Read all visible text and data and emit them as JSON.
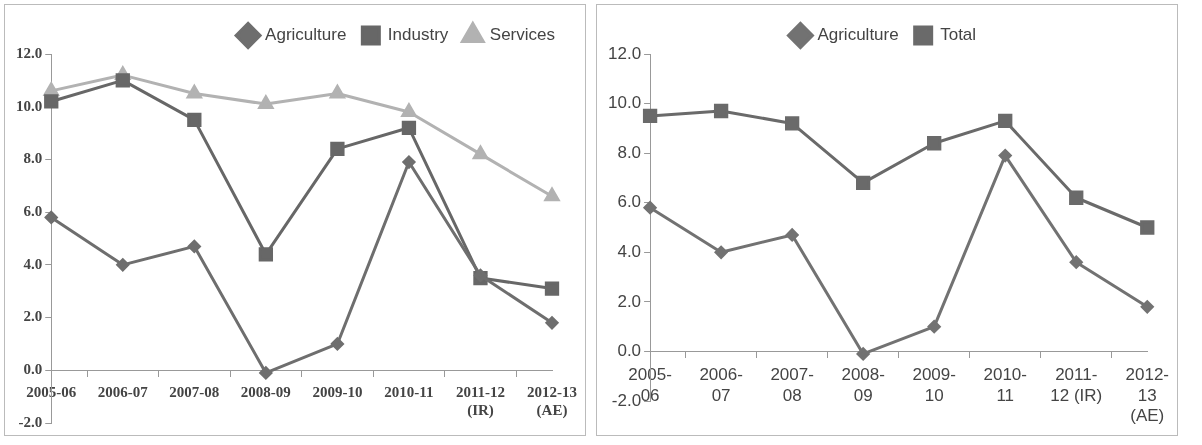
{
  "chart_data": [
    {
      "type": "line",
      "categories": [
        "2005-06",
        "2006-07",
        "2007-08",
        "2008-09",
        "2009-10",
        "2010-11",
        "2011-12 (IR)",
        "2012-13 (AE)"
      ],
      "series": [
        {
          "name": "Agriculture",
          "color": "#6e6e6e",
          "marker": "diamond",
          "values": [
            5.8,
            4.0,
            4.7,
            -0.1,
            1.0,
            7.9,
            3.6,
            1.8
          ]
        },
        {
          "name": "Industry",
          "color": "#676767",
          "marker": "square",
          "values": [
            10.2,
            11.0,
            9.5,
            4.4,
            8.4,
            9.2,
            3.5,
            3.1
          ]
        },
        {
          "name": "Services",
          "color": "#b2b2b2",
          "marker": "triangle",
          "values": [
            10.6,
            11.2,
            10.5,
            10.1,
            10.5,
            9.8,
            8.2,
            6.6
          ]
        }
      ],
      "ylim": [
        -2,
        12
      ],
      "yticks": [
        {
          "value": -2,
          "label": "-2.0"
        },
        {
          "value": 0,
          "label": "0.0"
        },
        {
          "value": 2,
          "label": "2.0"
        },
        {
          "value": 4,
          "label": "4.0"
        },
        {
          "value": 6,
          "label": "6.0"
        },
        {
          "value": 8,
          "label": "8.0"
        },
        {
          "value": 10,
          "label": "10.0"
        },
        {
          "value": 12,
          "label": "12.0"
        }
      ],
      "grid": false,
      "legend": "top right"
    },
    {
      "type": "line",
      "categories": [
        "2005-06",
        "2006-07",
        "2007-08",
        "2008-09",
        "2009-10",
        "2010-11",
        "2011-12 (IR)",
        "2012-13 (AE)"
      ],
      "series": [
        {
          "name": "Agriculture",
          "color": "#727272",
          "marker": "diamond",
          "values": [
            5.8,
            4.0,
            4.7,
            -0.1,
            1.0,
            7.9,
            3.6,
            1.8
          ]
        },
        {
          "name": "Total",
          "color": "#6a6a6a",
          "marker": "square",
          "values": [
            9.5,
            9.7,
            9.2,
            6.8,
            8.4,
            9.3,
            6.2,
            5.0
          ]
        }
      ],
      "ylim": [
        -2,
        12
      ],
      "yticks": [
        {
          "value": -2,
          "label": "-2.0"
        },
        {
          "value": 0,
          "label": "0.0"
        },
        {
          "value": 2,
          "label": "2.0"
        },
        {
          "value": 4,
          "label": "4.0"
        },
        {
          "value": 6,
          "label": "6.0"
        },
        {
          "value": 8,
          "label": "8.0"
        },
        {
          "value": 10,
          "label": "10.0"
        },
        {
          "value": 12,
          "label": "12.0"
        }
      ],
      "grid": false,
      "legend": "top"
    }
  ]
}
